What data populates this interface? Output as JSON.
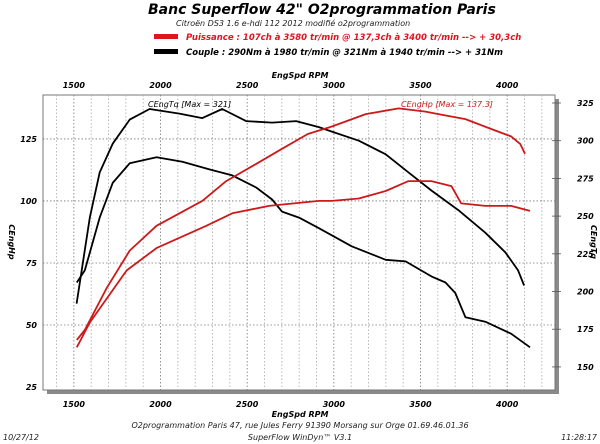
{
  "header": {
    "title": "Banc Superflow 42\" O2programmation Paris",
    "subtitle": "Citroën DS3 1.6 e-hdi 112 2012 modifié o2programmation",
    "legend": [
      {
        "text": "Puissance : 107ch à 3580 tr/min @ 137,3ch à 3400 tr/min --> + 30,3ch",
        "color": "#e0141e"
      },
      {
        "text": "Couple : 290Nm à 1980 tr/min @ 321Nm à 1940 tr/min --> + 31Nm",
        "color": "#000000"
      }
    ]
  },
  "footer": {
    "address": "O2programmation Paris 47, rue Jules Ferry 91390 Morsang sur Orge 01.69.46.01.36",
    "software": "SuperFlow WinDyn™ V3.1",
    "date": "10/27/12",
    "time": "11:28:17"
  },
  "chart_data": {
    "type": "line",
    "xlabel": "EngSpd RPM",
    "ylabel_left": "CEngHp",
    "ylabel_right": "CEngTq",
    "xlim": [
      1322,
      4276
    ],
    "ylim_left": [
      23.8,
      142.7
    ],
    "ylim_right": [
      134.7,
      330.3
    ],
    "x_ticks": [
      1500,
      2000,
      2500,
      3000,
      3500,
      4000
    ],
    "y_ticks_left": [
      25,
      50,
      75,
      100,
      125
    ],
    "y_ticks_right": [
      150,
      175,
      200,
      225,
      250,
      275,
      300,
      325
    ],
    "grid": true,
    "annotations": [
      "CEngTq [Max = 321]",
      "CEngHp [Max = 137.3]"
    ],
    "series": [
      {
        "axis": "right",
        "color": "#000000",
        "x": [
          1516,
          1592,
          1649,
          1724,
          1822,
          1937,
          2109,
          2241,
          2356,
          2494,
          2644,
          2782,
          2914,
          2989,
          3144,
          3299,
          3431,
          3563,
          3718,
          3874,
          3989,
          4063,
          4098
        ],
        "y": [
          192,
          249,
          279,
          298,
          314,
          321,
          318,
          315,
          321,
          313,
          312,
          313,
          309,
          306,
          300,
          291,
          279,
          267,
          254,
          239,
          226,
          214,
          204
        ]
      },
      {
        "axis": "right",
        "color": "#000000",
        "x": [
          1517,
          1563,
          1649,
          1724,
          1822,
          1977,
          2126,
          2282,
          2414,
          2552,
          2644,
          2701,
          2799,
          2914,
          3103,
          3299,
          3414,
          3563,
          3644,
          3701,
          3759,
          3874,
          4023,
          4132
        ],
        "y": [
          206,
          214,
          249,
          272,
          285,
          289,
          286,
          281,
          277,
          269,
          261,
          253,
          249,
          242,
          230,
          221,
          220,
          210,
          206,
          199,
          183,
          180,
          172,
          163
        ]
      },
      {
        "axis": "left",
        "color": "#cc1a1a",
        "x": [
          1517,
          1563,
          1690,
          1822,
          1977,
          2241,
          2379,
          2529,
          2701,
          2850,
          2989,
          3184,
          3374,
          3529,
          3603,
          3759,
          3908,
          4023,
          4075,
          4103
        ],
        "y": [
          44,
          48,
          65,
          80,
          90,
          100,
          108,
          114,
          121,
          127,
          130,
          135,
          137.3,
          136,
          135,
          133,
          129,
          126,
          123,
          119
        ]
      },
      {
        "axis": "left",
        "color": "#cc1a1a",
        "x": [
          1517,
          1592,
          1805,
          1977,
          2264,
          2414,
          2626,
          2914,
          2989,
          3144,
          3299,
          3431,
          3563,
          3678,
          3735,
          3874,
          4023,
          4132
        ],
        "y": [
          41,
          51,
          72,
          81,
          90,
          95,
          98,
          100,
          100,
          101,
          104,
          108,
          108,
          106,
          99,
          98,
          98,
          96
        ]
      }
    ]
  }
}
